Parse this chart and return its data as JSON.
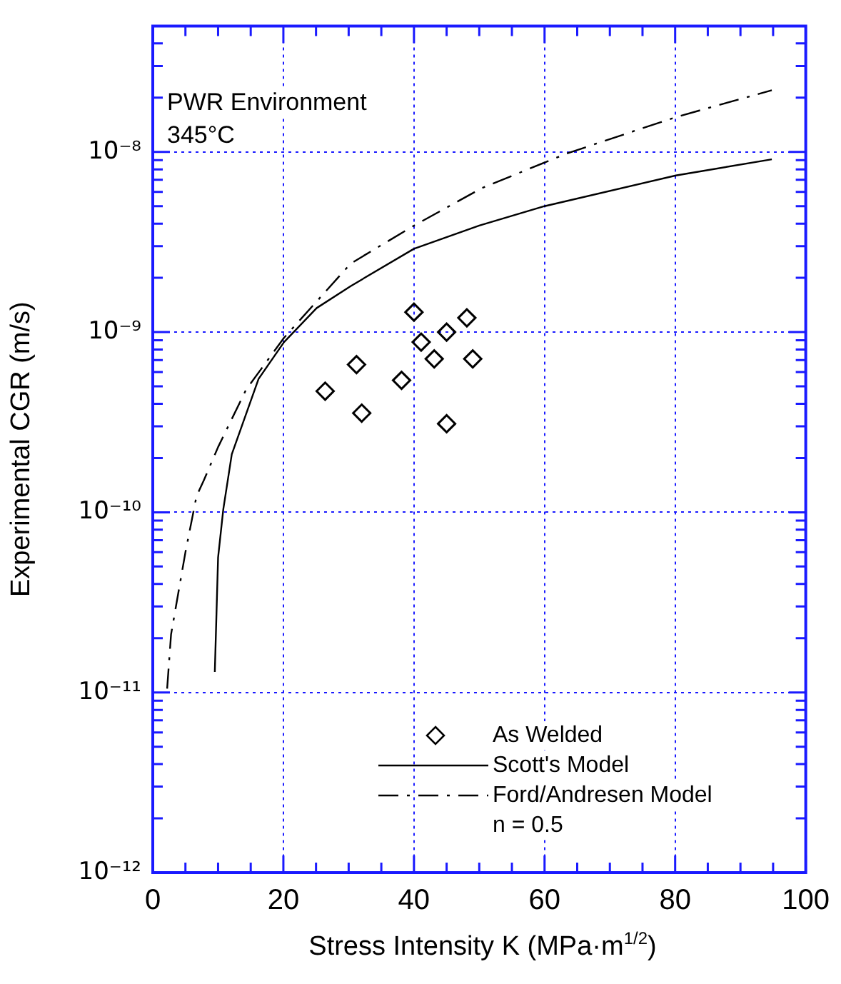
{
  "chart_data": {
    "type": "line",
    "xlabel": "Stress Intensity K (MPa·m$^{1/2}$)",
    "ylabel": "Experimental CGR (m/s)",
    "annotations": [
      "PWR Environment",
      "345°C",
      "n = 0.5"
    ],
    "xlim": [
      0,
      100
    ],
    "ylim": [
      1e-12,
      5e-08
    ],
    "log": "y",
    "grid": true,
    "legend": "bottom right",
    "xticks": [
      0,
      {
        "value": 5,
        "label": null
      },
      {
        "value": 10,
        "label": null
      },
      {
        "value": 15,
        "label": null
      },
      20,
      {
        "value": 25,
        "label": null
      },
      {
        "value": 30,
        "label": null
      },
      {
        "value": 35,
        "label": null
      },
      40,
      {
        "value": 45,
        "label": null
      },
      {
        "value": 50,
        "label": null
      },
      {
        "value": 55,
        "label": null
      },
      60,
      {
        "value": 65,
        "label": null
      },
      {
        "value": 70,
        "label": null
      },
      {
        "value": 75,
        "label": null
      },
      80,
      {
        "value": 85,
        "label": null
      },
      {
        "value": 90,
        "label": null
      },
      {
        "value": 95,
        "label": null
      },
      100
    ],
    "yticks": [
      {
        "value": 1e-12,
        "label": "10⁻¹²"
      },
      {
        "value": 2e-12,
        "label": null
      },
      {
        "value": 3e-12,
        "label": null
      },
      {
        "value": 4e-12,
        "label": null
      },
      {
        "value": 5e-12,
        "label": null
      },
      {
        "value": 6e-12,
        "label": null
      },
      {
        "value": 7e-12,
        "label": null
      },
      {
        "value": 8e-12,
        "label": null
      },
      {
        "value": 9e-12,
        "label": null
      },
      {
        "value": 1e-11,
        "label": "10⁻¹¹"
      },
      {
        "value": 2e-11,
        "label": null
      },
      {
        "value": 3e-11,
        "label": null
      },
      {
        "value": 4e-11,
        "label": null
      },
      {
        "value": 5e-11,
        "label": null
      },
      {
        "value": 6e-11,
        "label": null
      },
      {
        "value": 7e-11,
        "label": null
      },
      {
        "value": 8e-11,
        "label": null
      },
      {
        "value": 9e-11,
        "label": null
      },
      {
        "value": 1e-10,
        "label": "10⁻¹⁰"
      },
      {
        "value": 2e-10,
        "label": null
      },
      {
        "value": 3e-10,
        "label": null
      },
      {
        "value": 4e-10,
        "label": null
      },
      {
        "value": 5e-10,
        "label": null
      },
      {
        "value": 6e-10,
        "label": null
      },
      {
        "value": 7e-10,
        "label": null
      },
      {
        "value": 8e-10,
        "label": null
      },
      {
        "value": 9e-10,
        "label": null
      },
      {
        "value": 1e-09,
        "label": "10⁻⁹"
      },
      {
        "value": 2e-09,
        "label": null
      },
      {
        "value": 3e-09,
        "label": null
      },
      {
        "value": 4e-09,
        "label": null
      },
      {
        "value": 5e-09,
        "label": null
      },
      {
        "value": 6e-09,
        "label": null
      },
      {
        "value": 7e-09,
        "label": null
      },
      {
        "value": 8e-09,
        "label": null
      },
      {
        "value": 9e-09,
        "label": null
      },
      {
        "value": 1e-08,
        "label": "10⁻⁸"
      },
      {
        "value": 2e-08,
        "label": null
      },
      {
        "value": 3e-08,
        "label": null
      },
      {
        "value": 4e-08,
        "label": null
      },
      {
        "value": 5e-08,
        "label": null
      }
    ],
    "series": [
      {
        "name": "As Welded",
        "type": "scatter",
        "marker": "diamond",
        "color": "#000000",
        "x": [
          40.0,
          48.1,
          45.0,
          41.1,
          43.1,
          49.0,
          31.2,
          38.1,
          26.4,
          32.0,
          45.0
        ],
        "values": [
          1.29e-09,
          1.2e-09,
          1e-09,
          8.8e-10,
          7.1e-10,
          7.1e-10,
          6.6e-10,
          5.4e-10,
          4.7e-10,
          3.55e-10,
          3.1e-10
        ]
      },
      {
        "name": "Scott's Model",
        "type": "line",
        "marker": "none",
        "line_style": "solid",
        "color": "#000000",
        "x": [
          9.5,
          10.0,
          10.8,
          12.1,
          16.2,
          20.1,
          25.1,
          30.3,
          40,
          50,
          60,
          80.1,
          94.8
        ],
        "values": [
          1.3e-11,
          5.6e-11,
          1.04e-10,
          2.1e-10,
          5.5e-10,
          8.8e-10,
          1.36e-09,
          1.8e-09,
          2.9e-09,
          3.9e-09,
          5e-09,
          7.4e-09,
          9.1e-09
        ]
      },
      {
        "name": "Ford/Andresen Model",
        "type": "line",
        "marker": "none",
        "line_style": "dashed",
        "color": "#000000",
        "x": [
          2.2,
          2.8,
          5.0,
          6.7,
          7.8,
          10.0,
          14.3,
          20.1,
          30.3,
          40,
          50.4,
          63.4,
          80.1,
          94.8
        ],
        "values": [
          1.05e-11,
          2.1e-11,
          6e-11,
          1.23e-10,
          1.5e-10,
          2.3e-10,
          4.8e-10,
          9.3e-10,
          2.4e-09,
          3.9e-09,
          6.3e-09,
          9.8e-09,
          1.56e-08,
          2.2e-08
        ]
      }
    ]
  }
}
